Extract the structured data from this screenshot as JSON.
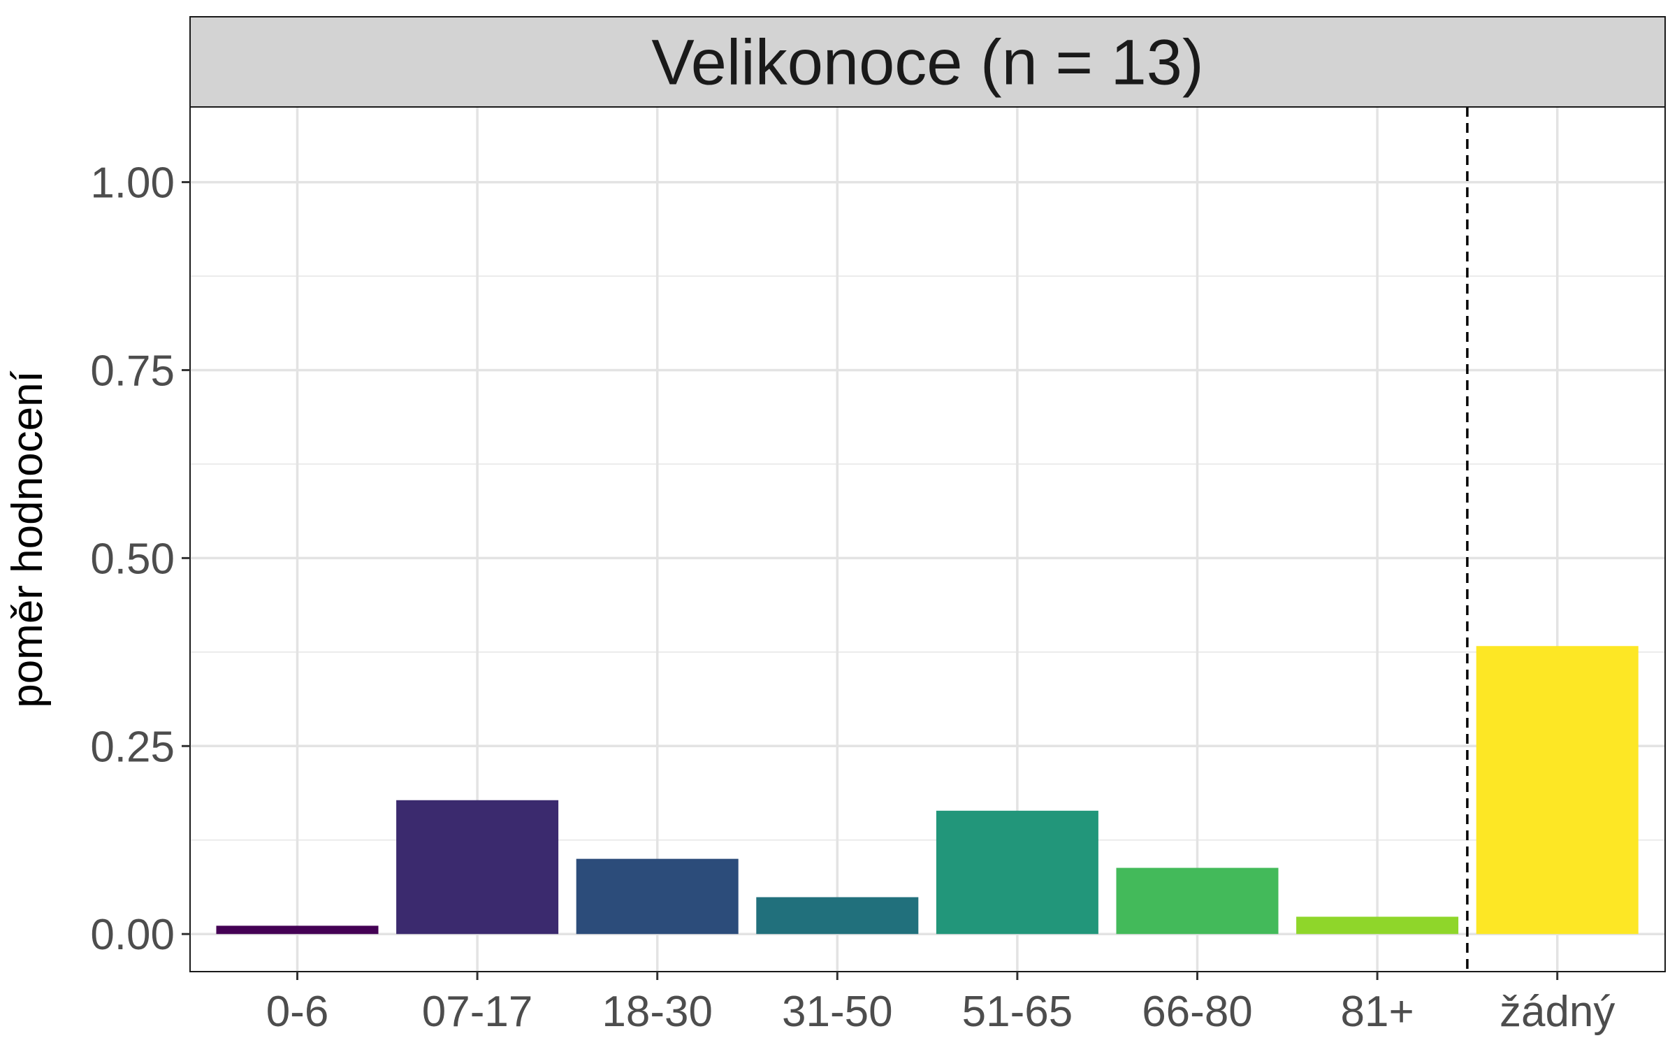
{
  "chart_data": {
    "type": "bar",
    "title": "Velikonoce (n = 13)",
    "xlabel": "",
    "ylabel": "poměr hodnocení",
    "categories": [
      "0-6",
      "07-17",
      "18-30",
      "31-50",
      "51-65",
      "66-80",
      "81+",
      "žádný"
    ],
    "values": [
      0.011,
      0.178,
      0.1,
      0.049,
      0.164,
      0.088,
      0.023,
      0.383
    ],
    "colors": [
      "#440154",
      "#3B2A6E",
      "#2C4C7A",
      "#21707C",
      "#22967A",
      "#43BA5A",
      "#8FD62A",
      "#FDE725"
    ],
    "ylim": [
      -0.05,
      1.1
    ],
    "yticks": [
      0.0,
      0.25,
      0.5,
      0.75,
      1.0
    ],
    "ytick_labels": [
      "0.00",
      "0.25",
      "0.50",
      "0.75",
      "1.00"
    ],
    "grid": true,
    "legend": "none",
    "reference_line": {
      "after_category": "81+",
      "style": "dashed",
      "color": "#000000"
    },
    "facet_strip_color": "#D3D3D3"
  }
}
